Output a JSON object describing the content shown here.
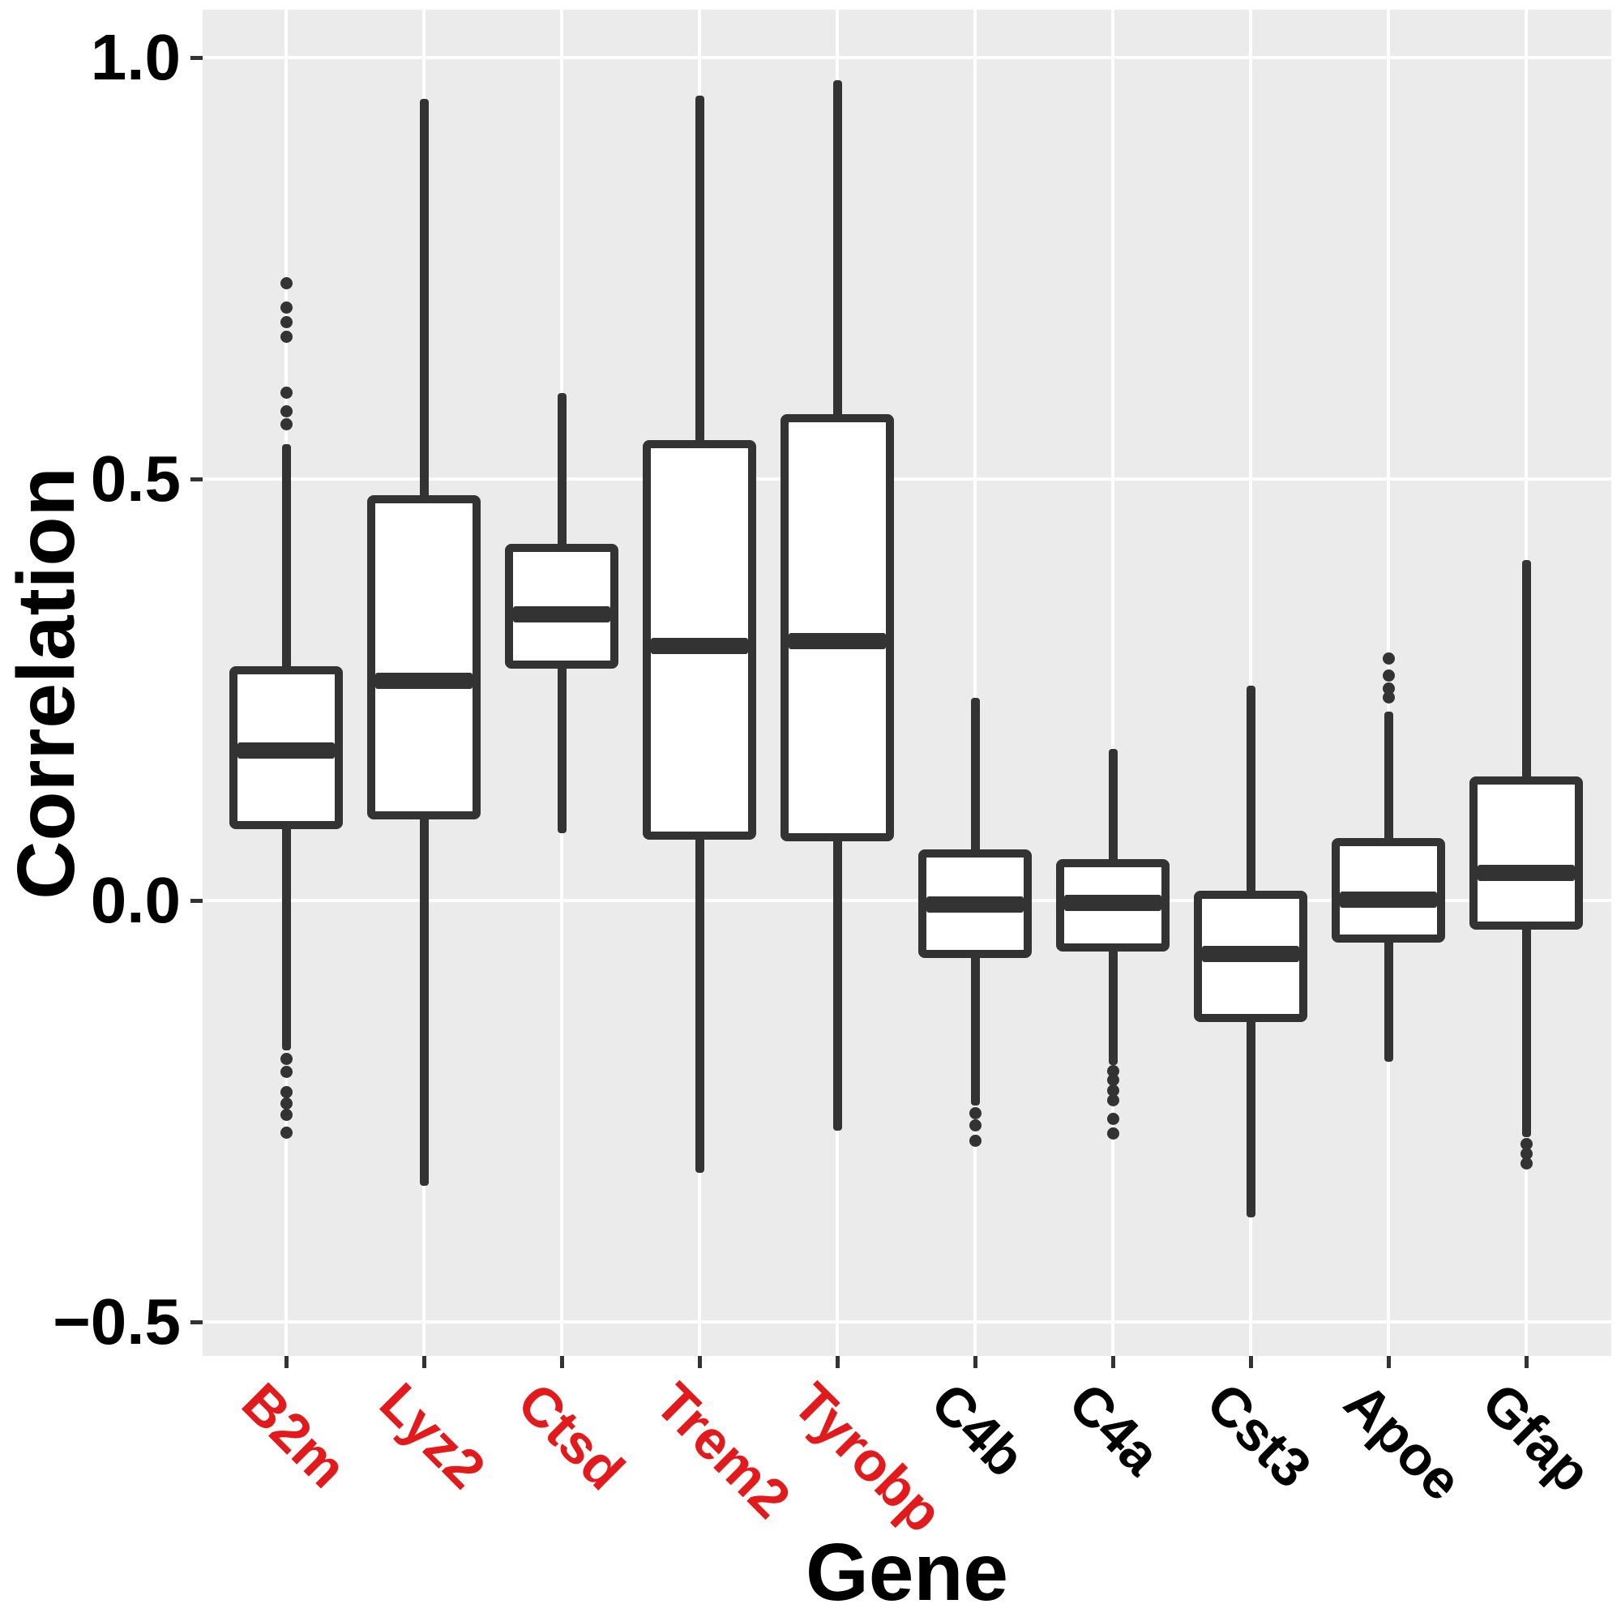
{
  "chart_data": {
    "type": "boxplot",
    "title": "",
    "xlabel": "Gene",
    "ylabel": "Correlation",
    "grid": "major-only",
    "legend": "none",
    "ylim": [
      -0.54,
      1.06
    ],
    "y_ticks": [
      {
        "label": "1.0",
        "value": 1.0
      },
      {
        "label": "0.5",
        "value": 0.5
      },
      {
        "label": "0.0",
        "value": 0.0
      },
      {
        "label": "−0.5",
        "value": -0.5
      }
    ],
    "categories": [
      "B2m",
      "Lyz2",
      "Ctsd",
      "Trem2",
      "Tyrobp",
      "C4b",
      "C4a",
      "Cst3",
      "Apoe",
      "Gfap"
    ],
    "category_label_colors": [
      "#E31A1C",
      "#E31A1C",
      "#E31A1C",
      "#E31A1C",
      "#E31A1C",
      "#000000",
      "#000000",
      "#000000",
      "#000000",
      "#000000"
    ],
    "series": [
      {
        "name": "B2m",
        "min": -0.178,
        "q1": 0.089,
        "median": 0.178,
        "q3": 0.273,
        "max": 0.541,
        "outliers": [
          0.732,
          0.703,
          0.686,
          0.669,
          0.602,
          0.58,
          0.565,
          -0.188,
          -0.203,
          -0.227,
          -0.241,
          -0.254,
          -0.275
        ]
      },
      {
        "name": "Lyz2",
        "min": -0.338,
        "q1": 0.101,
        "median": 0.261,
        "q3": 0.476,
        "max": 0.951,
        "outliers": []
      },
      {
        "name": "Ctsd",
        "min": 0.08,
        "q1": 0.28,
        "median": 0.339,
        "q3": 0.418,
        "max": 0.602,
        "outliers": []
      },
      {
        "name": "Trem2",
        "min": -0.323,
        "q1": 0.077,
        "median": 0.302,
        "q3": 0.541,
        "max": 0.955,
        "outliers": []
      },
      {
        "name": "Tyrobp",
        "min": -0.273,
        "q1": 0.075,
        "median": 0.308,
        "q3": 0.572,
        "max": 0.973,
        "outliers": []
      },
      {
        "name": "C4b",
        "min": -0.243,
        "q1": -0.063,
        "median": -0.005,
        "q3": 0.056,
        "max": 0.24,
        "outliers": [
          -0.252,
          -0.267,
          -0.285
        ]
      },
      {
        "name": "C4a",
        "min": -0.195,
        "q1": -0.056,
        "median": -0.003,
        "q3": 0.044,
        "max": 0.18,
        "outliers": [
          -0.202,
          -0.213,
          -0.225,
          -0.237,
          -0.259,
          -0.276
        ]
      },
      {
        "name": "Cst3",
        "min": -0.376,
        "q1": -0.139,
        "median": -0.063,
        "q3": 0.007,
        "max": 0.255,
        "outliers": []
      },
      {
        "name": "Apoe",
        "min": -0.191,
        "q1": -0.045,
        "median": 0.001,
        "q3": 0.069,
        "max": 0.224,
        "outliers": [
          0.287,
          0.267,
          0.251,
          0.241
        ]
      },
      {
        "name": "Gfap",
        "min": -0.281,
        "q1": -0.03,
        "median": 0.033,
        "q3": 0.142,
        "max": 0.404,
        "outliers": [
          -0.289,
          -0.3,
          -0.312
        ]
      }
    ],
    "colors": {
      "panel_background": "#EBEBEB",
      "gridline": "#FFFFFF",
      "box_stroke": "#333333",
      "box_fill": "#FFFFFF",
      "highlight_label": "#E31A1C",
      "normal_label": "#000000"
    }
  }
}
